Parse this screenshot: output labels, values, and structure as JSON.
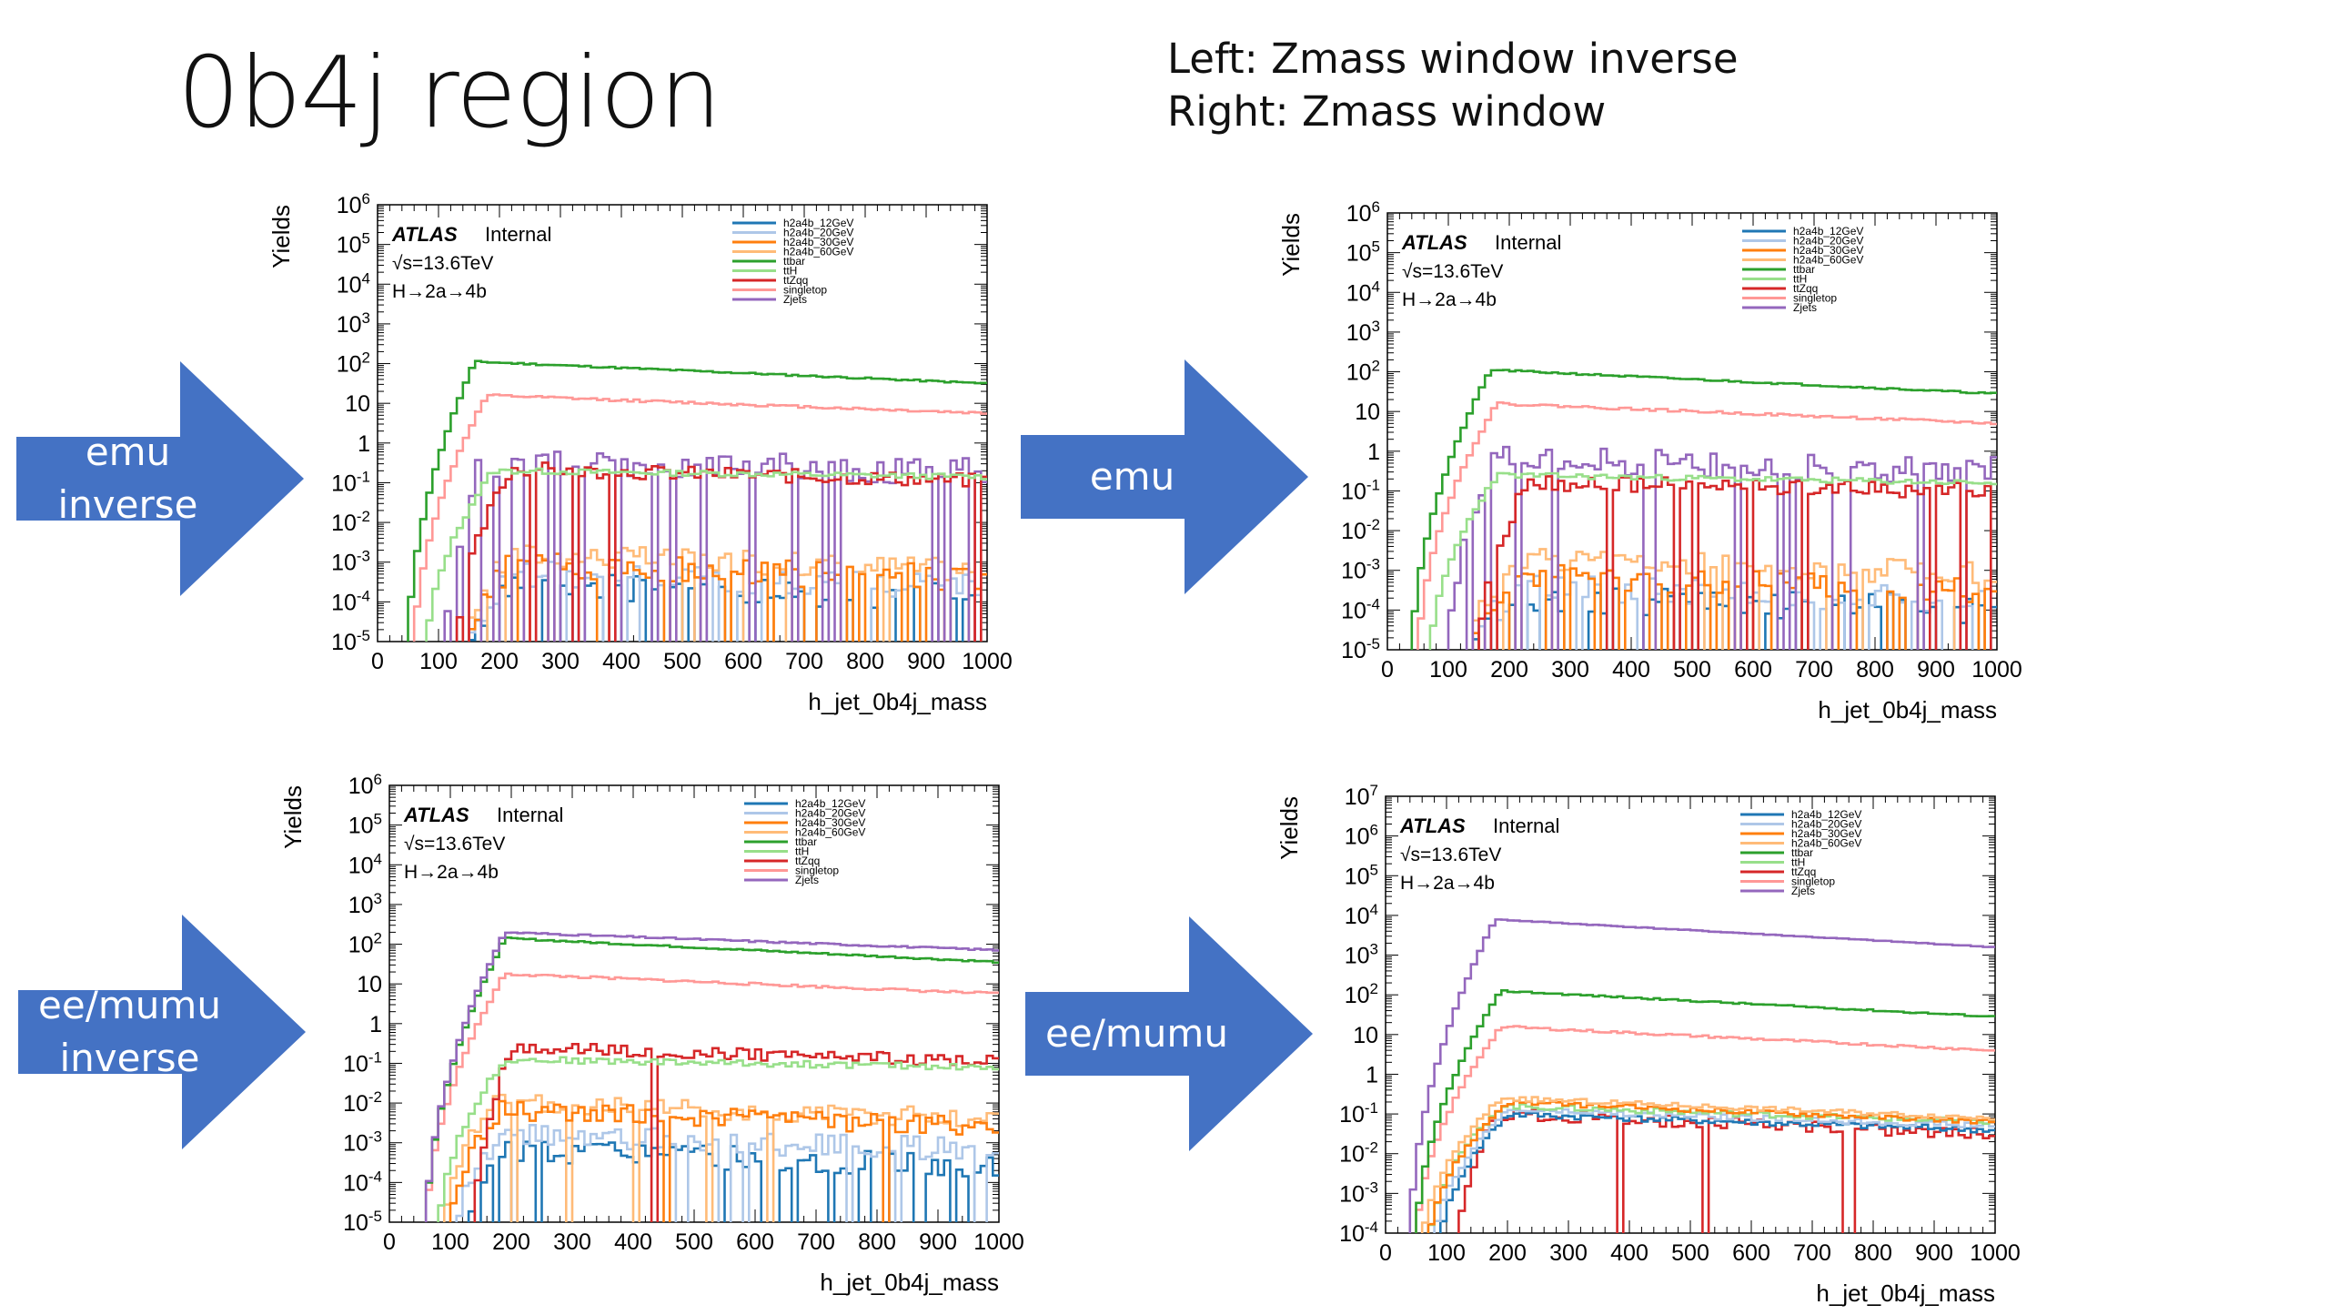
{
  "slide": {
    "title": "0b4j region",
    "subtitle_left": "Left: Zmass window inverse",
    "subtitle_right": "Right: Zmass window"
  },
  "arrows": [
    {
      "lines": [
        "emu",
        "inverse"
      ],
      "color": "#4472C4"
    },
    {
      "lines": [
        "emu"
      ],
      "color": "#4472C4"
    },
    {
      "lines": [
        "ee/mumu",
        "inverse"
      ],
      "color": "#4472C4"
    },
    {
      "lines": [
        "ee/mumu"
      ],
      "color": "#4472C4"
    }
  ],
  "legend": [
    {
      "name": "h2a4b_12GeV",
      "color": "#1f77b4"
    },
    {
      "name": "h2a4b_20GeV",
      "color": "#aec7e8"
    },
    {
      "name": "h2a4b_30GeV",
      "color": "#ff7f0e"
    },
    {
      "name": "h2a4b_60GeV",
      "color": "#ffbb78"
    },
    {
      "name": "ttbar",
      "color": "#2ca02c"
    },
    {
      "name": "ttH",
      "color": "#98df8a"
    },
    {
      "name": "ttZqq",
      "color": "#d62728"
    },
    {
      "name": "singletop",
      "color": "#ff9896"
    },
    {
      "name": "Zjets",
      "color": "#9467bd"
    }
  ],
  "atlas": {
    "label": "ATLAS",
    "status": "Internal",
    "energy": "√s=13.6TeV",
    "process": "H→2a→4b"
  },
  "chart_data": [
    {
      "type": "line",
      "step": true,
      "xlabel": "h_jet_0b4j_mass",
      "ylabel": "Yields",
      "xlim": [
        0,
        1000
      ],
      "ylim_log10": [
        -5,
        6
      ],
      "yscale": "log",
      "xticks": [
        "0",
        "100",
        "200",
        "300",
        "400",
        "500",
        "600",
        "700",
        "800",
        "900",
        "1000"
      ],
      "yticks": [
        {
          "base": "10",
          "exp": "-5"
        },
        {
          "base": "10",
          "exp": "-4"
        },
        {
          "base": "10",
          "exp": "-3"
        },
        {
          "base": "10",
          "exp": "-2"
        },
        {
          "base": "10",
          "exp": "-1"
        },
        {
          "base": "1",
          "exp": ""
        },
        {
          "base": "10",
          "exp": ""
        },
        {
          "base": "10",
          "exp": "2"
        },
        {
          "base": "10",
          "exp": "3"
        },
        {
          "base": "10",
          "exp": "4"
        },
        {
          "base": "10",
          "exp": "5"
        },
        {
          "base": "10",
          "exp": "6"
        }
      ],
      "series": [
        {
          "name": "ttbar",
          "color": "#2ca02c",
          "plateau": 2.05,
          "tail": 1.5,
          "onset": 50,
          "rise": 110,
          "jitter": 0.02,
          "seed": 11
        },
        {
          "name": "singletop",
          "color": "#ff9896",
          "plateau": 1.2,
          "tail": 0.75,
          "onset": 60,
          "rise": 120,
          "jitter": 0.03,
          "seed": 12
        },
        {
          "name": "ttH",
          "color": "#98df8a",
          "plateau": -0.7,
          "tail": -0.85,
          "onset": 80,
          "rise": 110,
          "jitter": 0.07,
          "seed": 13
        },
        {
          "name": "ttZqq",
          "color": "#d62728",
          "plateau": -0.65,
          "tail": -0.95,
          "onset": 130,
          "rise": 90,
          "jitter": 0.18,
          "seed": 14,
          "dropout": 0.08
        },
        {
          "name": "Zjets",
          "color": "#9467bd",
          "plateau": -0.5,
          "tail": -0.7,
          "onset": 110,
          "rise": 60,
          "jitter": 0.35,
          "seed": 15,
          "dropout": 0.22
        },
        {
          "name": "h2a4b_30GeV",
          "color": "#ff7f0e",
          "plateau": -3.1,
          "tail": -3.4,
          "onset": 140,
          "rise": 80,
          "jitter": 0.35,
          "seed": 16,
          "dropout": 0.2
        },
        {
          "name": "h2a4b_60GeV",
          "color": "#ffbb78",
          "plateau": -2.8,
          "tail": -3.2,
          "onset": 140,
          "rise": 80,
          "jitter": 0.3,
          "seed": 17,
          "dropout": 0.15
        },
        {
          "name": "h2a4b_20GeV",
          "color": "#aec7e8",
          "plateau": -3.3,
          "tail": -3.6,
          "onset": 150,
          "rise": 80,
          "jitter": 0.35,
          "seed": 18,
          "dropout": 0.3
        },
        {
          "name": "h2a4b_12GeV",
          "color": "#1f77b4",
          "plateau": -3.6,
          "tail": -3.9,
          "onset": 150,
          "rise": 80,
          "jitter": 0.35,
          "seed": 19,
          "dropout": 0.4
        }
      ]
    },
    {
      "type": "line",
      "step": true,
      "xlabel": "h_jet_0b4j_mass",
      "ylabel": "Yields",
      "xlim": [
        0,
        1000
      ],
      "ylim_log10": [
        -5,
        6
      ],
      "yscale": "log",
      "xticks": [
        "0",
        "100",
        "200",
        "300",
        "400",
        "500",
        "600",
        "700",
        "800",
        "900",
        "1000"
      ],
      "yticks": [
        {
          "base": "10",
          "exp": "-5"
        },
        {
          "base": "10",
          "exp": "-4"
        },
        {
          "base": "10",
          "exp": "-3"
        },
        {
          "base": "10",
          "exp": "-2"
        },
        {
          "base": "10",
          "exp": "-1"
        },
        {
          "base": "1",
          "exp": ""
        },
        {
          "base": "10",
          "exp": ""
        },
        {
          "base": "10",
          "exp": "2"
        },
        {
          "base": "10",
          "exp": "3"
        },
        {
          "base": "10",
          "exp": "4"
        },
        {
          "base": "10",
          "exp": "5"
        },
        {
          "base": "10",
          "exp": "6"
        }
      ],
      "series": [
        {
          "name": "ttbar",
          "color": "#2ca02c",
          "plateau": 2.05,
          "tail": 1.45,
          "onset": 40,
          "rise": 130,
          "jitter": 0.02,
          "seed": 21
        },
        {
          "name": "singletop",
          "color": "#ff9896",
          "plateau": 1.2,
          "tail": 0.7,
          "onset": 50,
          "rise": 130,
          "jitter": 0.03,
          "seed": 22
        },
        {
          "name": "ttH",
          "color": "#98df8a",
          "plateau": -0.6,
          "tail": -0.8,
          "onset": 70,
          "rise": 110,
          "jitter": 0.07,
          "seed": 23
        },
        {
          "name": "ttZqq",
          "color": "#d62728",
          "plateau": -0.8,
          "tail": -1.0,
          "onset": 150,
          "rise": 80,
          "jitter": 0.2,
          "seed": 24,
          "dropout": 0.1
        },
        {
          "name": "Zjets",
          "color": "#9467bd",
          "plateau": -0.2,
          "tail": -0.5,
          "onset": 100,
          "rise": 70,
          "jitter": 0.35,
          "seed": 25,
          "dropout": 0.12
        },
        {
          "name": "h2a4b_30GeV",
          "color": "#ff7f0e",
          "plateau": -3.1,
          "tail": -3.5,
          "onset": 130,
          "rise": 80,
          "jitter": 0.35,
          "seed": 26,
          "dropout": 0.25
        },
        {
          "name": "h2a4b_60GeV",
          "color": "#ffbb78",
          "plateau": -2.7,
          "tail": -3.1,
          "onset": 130,
          "rise": 80,
          "jitter": 0.3,
          "seed": 27,
          "dropout": 0.15
        },
        {
          "name": "h2a4b_20GeV",
          "color": "#aec7e8",
          "plateau": -3.4,
          "tail": -3.8,
          "onset": 140,
          "rise": 80,
          "jitter": 0.35,
          "seed": 28,
          "dropout": 0.3
        },
        {
          "name": "h2a4b_12GeV",
          "color": "#1f77b4",
          "plateau": -3.7,
          "tail": -4.0,
          "onset": 140,
          "rise": 80,
          "jitter": 0.35,
          "seed": 29,
          "dropout": 0.45
        }
      ]
    },
    {
      "type": "line",
      "step": true,
      "xlabel": "h_jet_0b4j_mass",
      "ylabel": "Yields",
      "xlim": [
        0,
        1000
      ],
      "ylim_log10": [
        -5,
        6
      ],
      "yscale": "log",
      "xticks": [
        "0",
        "100",
        "200",
        "300",
        "400",
        "500",
        "600",
        "700",
        "800",
        "900",
        "1000"
      ],
      "yticks": [
        {
          "base": "10",
          "exp": "-5"
        },
        {
          "base": "10",
          "exp": "-4"
        },
        {
          "base": "10",
          "exp": "-3"
        },
        {
          "base": "10",
          "exp": "-2"
        },
        {
          "base": "10",
          "exp": "-1"
        },
        {
          "base": "1",
          "exp": ""
        },
        {
          "base": "10",
          "exp": ""
        },
        {
          "base": "10",
          "exp": "2"
        },
        {
          "base": "10",
          "exp": "3"
        },
        {
          "base": "10",
          "exp": "4"
        },
        {
          "base": "10",
          "exp": "5"
        },
        {
          "base": "10",
          "exp": "6"
        }
      ],
      "series": [
        {
          "name": "Zjets",
          "color": "#9467bd",
          "plateau": 2.3,
          "tail": 1.85,
          "onset": 60,
          "rise": 130,
          "jitter": 0.02,
          "seed": 31
        },
        {
          "name": "ttbar",
          "color": "#2ca02c",
          "plateau": 2.15,
          "tail": 1.55,
          "onset": 60,
          "rise": 130,
          "jitter": 0.02,
          "seed": 32
        },
        {
          "name": "singletop",
          "color": "#ff9896",
          "plateau": 1.25,
          "tail": 0.75,
          "onset": 60,
          "rise": 130,
          "jitter": 0.03,
          "seed": 33
        },
        {
          "name": "ttH",
          "color": "#98df8a",
          "plateau": -0.9,
          "tail": -1.1,
          "onset": 80,
          "rise": 110,
          "jitter": 0.08,
          "seed": 34
        },
        {
          "name": "ttZqq",
          "color": "#d62728",
          "plateau": -0.6,
          "tail": -0.95,
          "onset": 140,
          "rise": 60,
          "jitter": 0.15,
          "seed": 35,
          "dropout": 0.05
        },
        {
          "name": "h2a4b_30GeV",
          "color": "#ff7f0e",
          "plateau": -2.2,
          "tail": -2.6,
          "onset": 100,
          "rise": 80,
          "jitter": 0.25,
          "seed": 36,
          "dropout": 0.05
        },
        {
          "name": "h2a4b_60GeV",
          "color": "#ffbb78",
          "plateau": -2.0,
          "tail": -2.4,
          "onset": 90,
          "rise": 80,
          "jitter": 0.25,
          "seed": 37,
          "dropout": 0.05
        },
        {
          "name": "h2a4b_20GeV",
          "color": "#aec7e8",
          "plateau": -2.8,
          "tail": -3.2,
          "onset": 110,
          "rise": 80,
          "jitter": 0.3,
          "seed": 38,
          "dropout": 0.1
        },
        {
          "name": "h2a4b_12GeV",
          "color": "#1f77b4",
          "plateau": -3.2,
          "tail": -3.6,
          "onset": 120,
          "rise": 80,
          "jitter": 0.3,
          "seed": 39,
          "dropout": 0.15
        }
      ]
    },
    {
      "type": "line",
      "step": true,
      "xlabel": "h_jet_0b4j_mass",
      "ylabel": "Yields",
      "xlim": [
        0,
        1000
      ],
      "ylim_log10": [
        -4,
        7
      ],
      "yscale": "log",
      "xticks": [
        "0",
        "100",
        "200",
        "300",
        "400",
        "500",
        "600",
        "700",
        "800",
        "900",
        "1000"
      ],
      "yticks": [
        {
          "base": "10",
          "exp": "-4"
        },
        {
          "base": "10",
          "exp": "-3"
        },
        {
          "base": "10",
          "exp": "-2"
        },
        {
          "base": "10",
          "exp": "-1"
        },
        {
          "base": "1",
          "exp": ""
        },
        {
          "base": "10",
          "exp": ""
        },
        {
          "base": "10",
          "exp": "2"
        },
        {
          "base": "10",
          "exp": "3"
        },
        {
          "base": "10",
          "exp": "4"
        },
        {
          "base": "10",
          "exp": "5"
        },
        {
          "base": "10",
          "exp": "6"
        },
        {
          "base": "10",
          "exp": "7"
        }
      ],
      "series": [
        {
          "name": "Zjets",
          "color": "#9467bd",
          "plateau": 3.9,
          "tail": 3.2,
          "onset": 40,
          "rise": 140,
          "jitter": 0.01,
          "seed": 41
        },
        {
          "name": "ttbar",
          "color": "#2ca02c",
          "plateau": 2.1,
          "tail": 1.45,
          "onset": 50,
          "rise": 140,
          "jitter": 0.02,
          "seed": 42
        },
        {
          "name": "singletop",
          "color": "#ff9896",
          "plateau": 1.2,
          "tail": 0.6,
          "onset": 50,
          "rise": 140,
          "jitter": 0.03,
          "seed": 43
        },
        {
          "name": "h2a4b_60GeV",
          "color": "#ffbb78",
          "plateau": -0.6,
          "tail": -1.1,
          "onset": 60,
          "rise": 130,
          "jitter": 0.06,
          "seed": 44
        },
        {
          "name": "h2a4b_30GeV",
          "color": "#ff7f0e",
          "plateau": -0.7,
          "tail": -1.2,
          "onset": 70,
          "rise": 130,
          "jitter": 0.06,
          "seed": 45
        },
        {
          "name": "ttH",
          "color": "#98df8a",
          "plateau": -0.8,
          "tail": -1.2,
          "onset": 70,
          "rise": 120,
          "jitter": 0.07,
          "seed": 46
        },
        {
          "name": "h2a4b_20GeV",
          "color": "#aec7e8",
          "plateau": -0.9,
          "tail": -1.3,
          "onset": 80,
          "rise": 120,
          "jitter": 0.07,
          "seed": 47
        },
        {
          "name": "h2a4b_12GeV",
          "color": "#1f77b4",
          "plateau": -1.0,
          "tail": -1.4,
          "onset": 90,
          "rise": 110,
          "jitter": 0.08,
          "seed": 48
        },
        {
          "name": "ttZqq",
          "color": "#d62728",
          "plateau": -1.0,
          "tail": -1.5,
          "onset": 120,
          "rise": 60,
          "jitter": 0.15,
          "seed": 49,
          "dropout": 0.08
        }
      ]
    }
  ]
}
